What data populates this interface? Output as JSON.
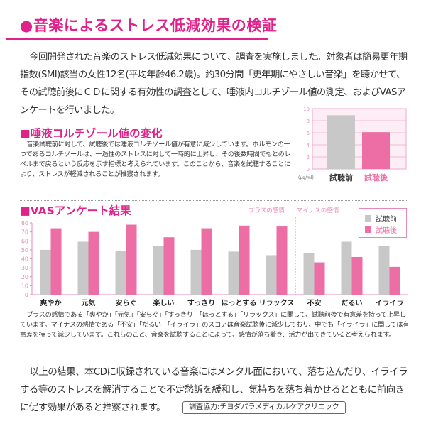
{
  "title": "●音楽によるストレス低減効果の検証",
  "intro": "今回開発された音楽のストレス低減効果について、調査を実施しました。対象者は簡易更年期指数(SMI)該当の女性12名(平均年齢46.2歳)。約30分間「更年期にやさしい音楽」を聴かせて、その試聴前後にＣＤに関する有効性の調査として、唾液内コルチゾール値の測定、およびVASアンケートを行いました。",
  "cortisol": {
    "heading": "■唾液コルチゾール値の変化",
    "text": "音楽試聴前に対して、試聴後では唾液コルチゾール値が有意に減少しています。ホルモンの一つであるコルチゾールは、一過性のストレスに対して一時的に上昇し、その後数時間でもとのレベルまで戻るという反応を示す指標と考えられています。このことから、音楽を試聴することにより、ストレスが軽減されることが推察されます。"
  },
  "vas": {
    "heading": "■VASアンケート結果",
    "plus_label": "プラスの感情",
    "minus_label": "マイナスの感情",
    "text": "プラスの感情である「爽やか」「元気」「安らぐ」「すっきり」「ほっとする」「リラックス」に関して、試聴前後で有意差を持って上昇しています。マイナスの感情である「不安」「だるい」「イライラ」のスコアは音楽試聴後に減少しており、中でも「イライラ」に関しては有意差を持って減少しています。これらのこと、音楽を試聴することによって、感情が落ち着き、活力が出てきていると考えられます。"
  },
  "conclusion": "以上の結果、本CDに収録されている音楽にはメンタル面において、落ち込んだり、イライラする等のストレスを解消することで不定愁訴を緩和し、気持ちを落ち着かせるとともに前向きに促す効果があると推察されます。",
  "credit": "調査協力:チヨダパラメディカルケアクリニック",
  "colors": {
    "accent": "#e0218a",
    "before": "#c8c8c8",
    "after": "#ec6ea5"
  },
  "chart_data": [
    {
      "type": "bar",
      "categories": [
        "試聴前",
        "試聴後"
      ],
      "values": [
        8.9,
        6.1
      ],
      "ylabel": "(μg/ml)",
      "ylim": [
        0,
        10
      ],
      "yticks": [
        "0",
        "2",
        "4",
        "6",
        "8",
        "10"
      ],
      "grid": true
    },
    {
      "type": "bar",
      "categories": [
        "爽やか",
        "元気",
        "安らぐ",
        "楽しい",
        "すっきり",
        "ほっとする",
        "リラックス",
        "不安",
        "だるい",
        "イライラ"
      ],
      "series": [
        {
          "name": "試聴前",
          "values": [
            50,
            59,
            49,
            54,
            50,
            48,
            44,
            46,
            59,
            54
          ]
        },
        {
          "name": "試聴後",
          "values": [
            74,
            70,
            78,
            64,
            74,
            77,
            76,
            36,
            42,
            31
          ]
        }
      ],
      "ylim": [
        0,
        80
      ],
      "yticks": [
        "0",
        "10",
        "20",
        "30",
        "40",
        "50",
        "60",
        "70",
        "80"
      ],
      "legend": "top-right",
      "grid": false
    }
  ]
}
